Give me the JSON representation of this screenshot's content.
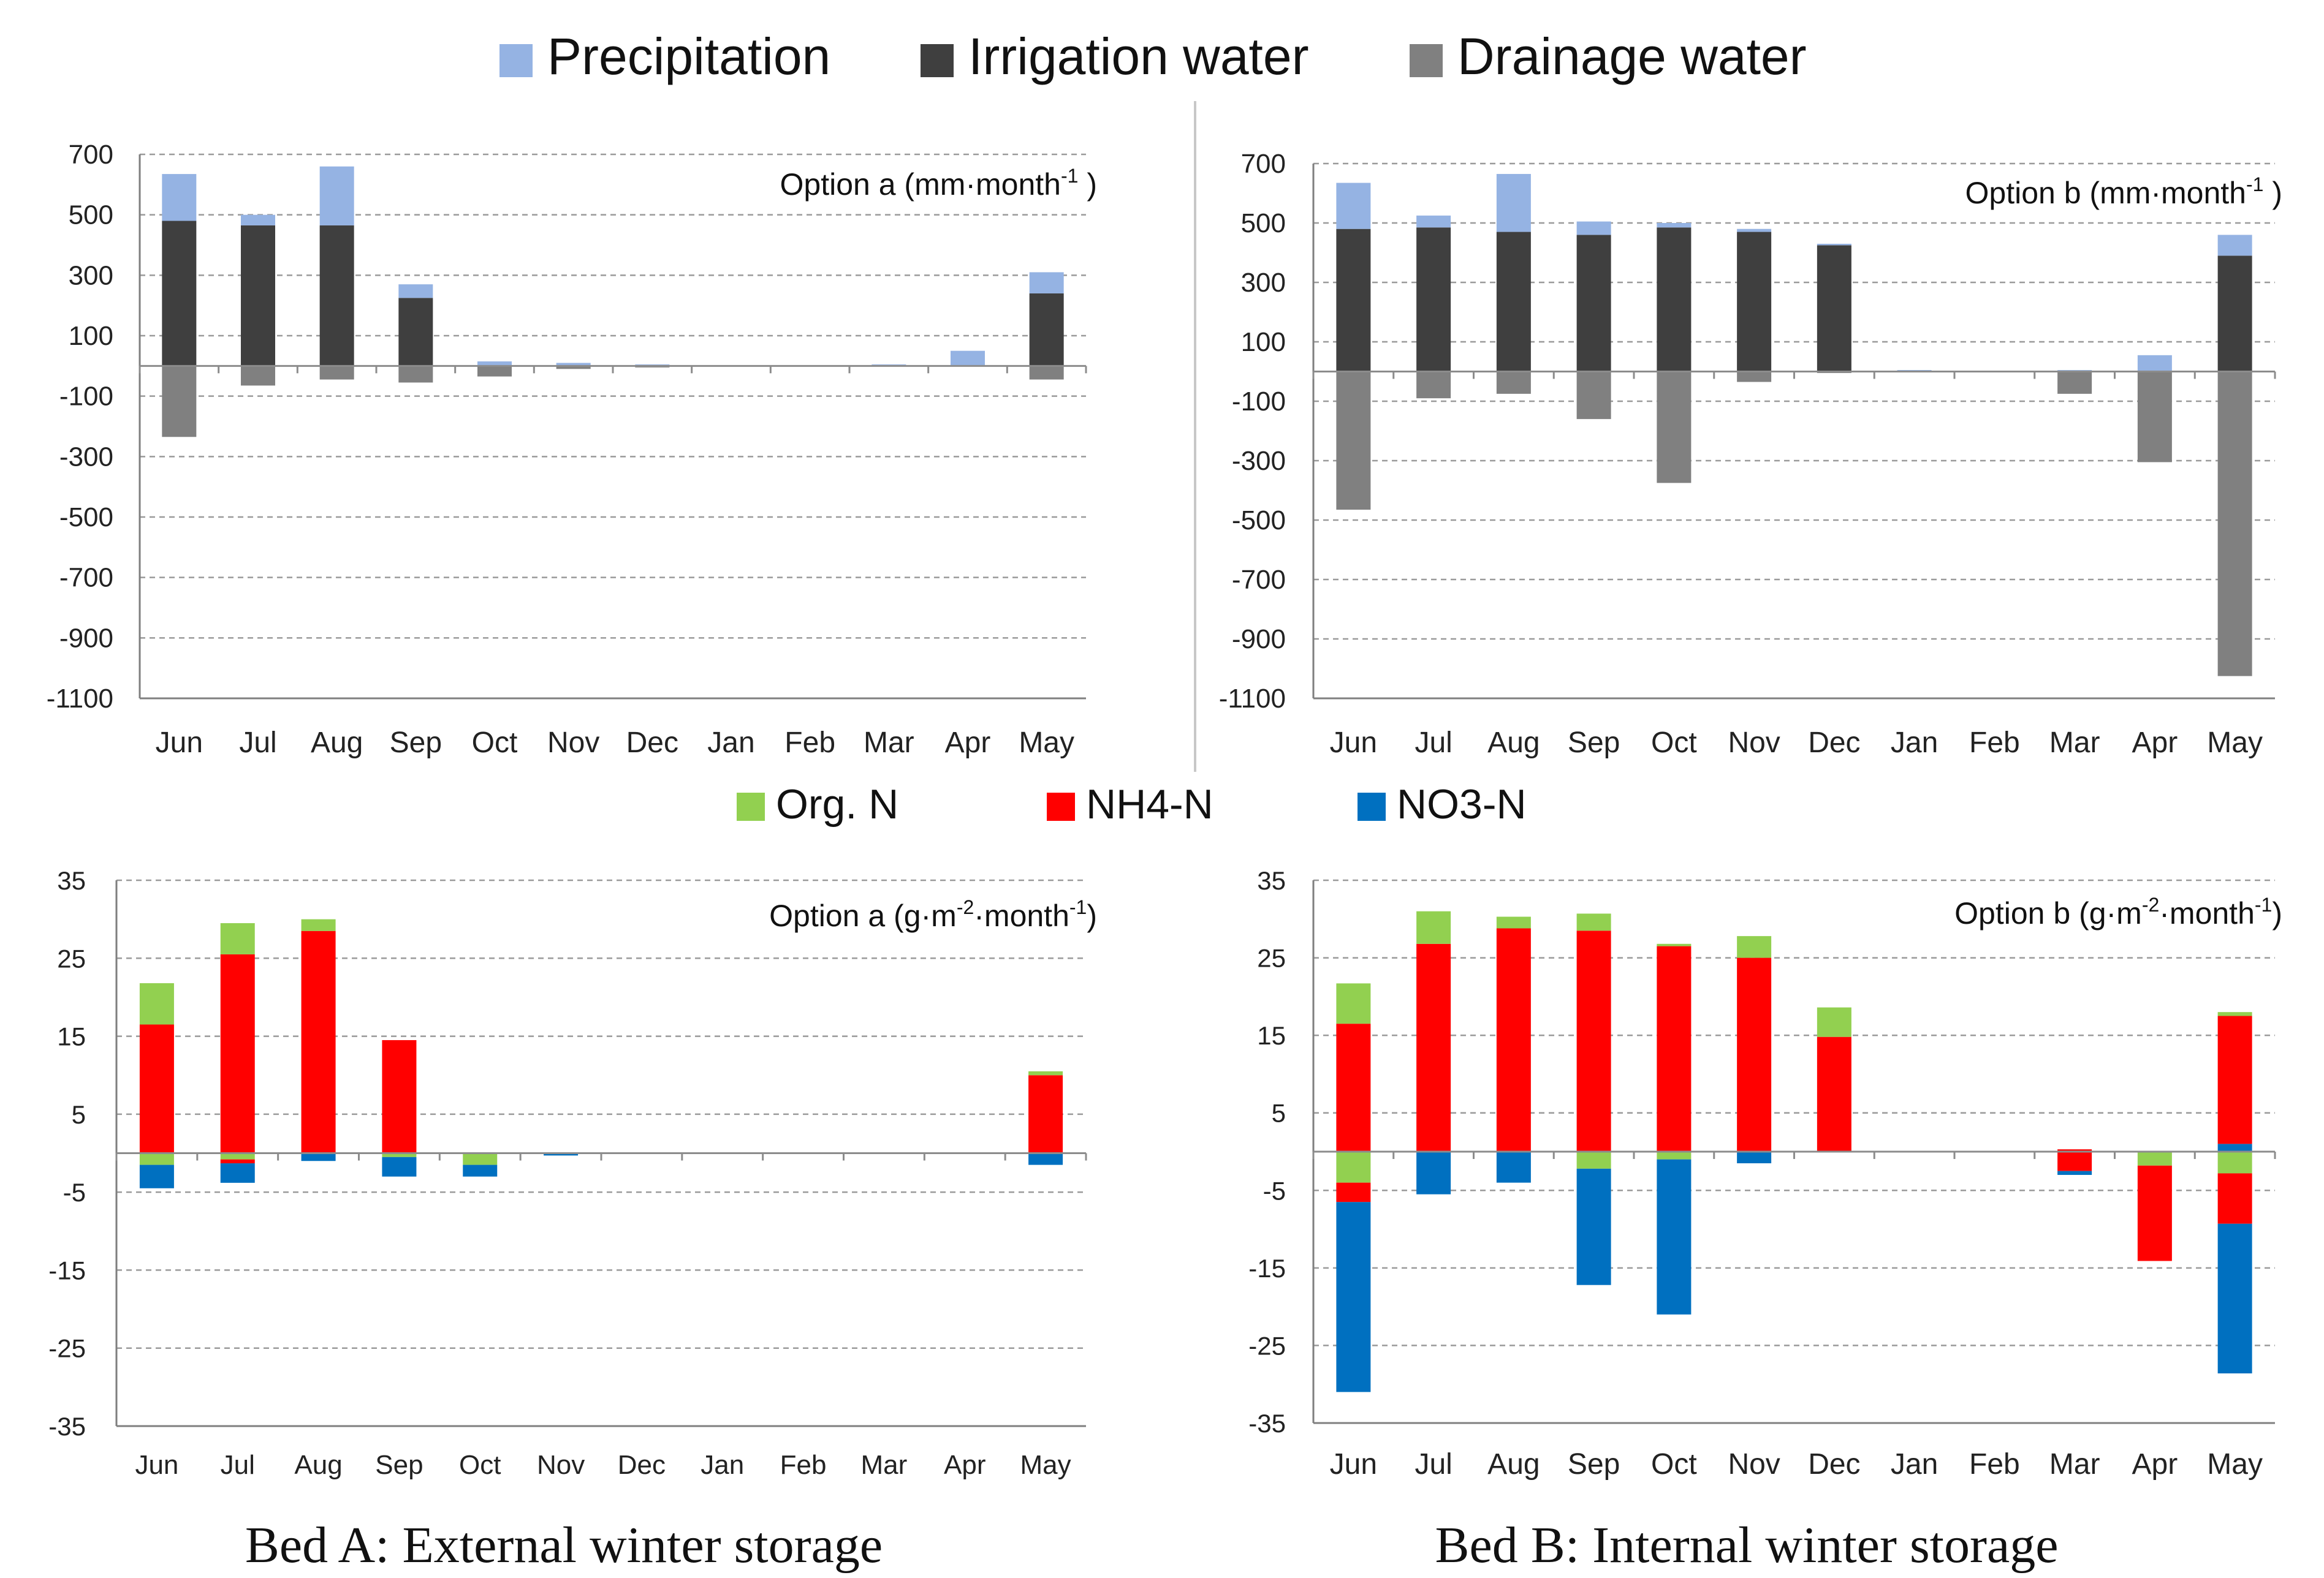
{
  "water_legend": [
    {
      "label": "Precipitation",
      "color": "#95b3e3"
    },
    {
      "label": "Irrigation water",
      "color": "#3f3f3f"
    },
    {
      "label": "Drainage water",
      "color": "#808080"
    }
  ],
  "nitrogen_legend": [
    {
      "label": "Org. N",
      "color": "#92d050"
    },
    {
      "label": "NH4-N",
      "color": "#ff0000"
    },
    {
      "label": "NO3-N",
      "color": "#0070c0"
    }
  ],
  "captions": {
    "bed_a": "Bed A: External winter storage",
    "bed_b": "Bed B: Internal winter storage"
  },
  "panel_titles": {
    "water_a": "Option a (mm·month",
    "water_b": "Option b (mm·month",
    "n_a": "Option a (g·m",
    "n_b": "Option b (g·m",
    "sup_neg1": "-1",
    "sup_neg2": "-2",
    "close": " )",
    "close_tight": ")",
    "mid": "·month"
  },
  "chart_data": [
    {
      "id": "water_a",
      "type": "bar",
      "stacked": true,
      "title": "Option a (mm·month-1 )",
      "categories": [
        "Jun",
        "Jul",
        "Aug",
        "Sep",
        "Oct",
        "Nov",
        "Dec",
        "Jan",
        "Feb",
        "Mar",
        "Apr",
        "May"
      ],
      "ylim": [
        -1100,
        700
      ],
      "yticks": [
        700,
        500,
        300,
        100,
        -100,
        -300,
        -500,
        -700,
        -900,
        -1100
      ],
      "series": [
        {
          "name": "Irrigation water",
          "color": "#3f3f3f",
          "values": [
            480,
            465,
            465,
            225,
            0,
            0,
            0,
            0,
            0,
            0,
            0,
            240
          ]
        },
        {
          "name": "Precipitation",
          "color": "#95b3e3",
          "values": [
            155,
            35,
            195,
            45,
            15,
            10,
            5,
            0,
            0,
            5,
            50,
            70
          ]
        },
        {
          "name": "Drainage water",
          "color": "#808080",
          "values": [
            -235,
            -65,
            -45,
            -55,
            -35,
            -10,
            -5,
            0,
            0,
            0,
            0,
            -45
          ]
        }
      ]
    },
    {
      "id": "water_b",
      "type": "bar",
      "stacked": true,
      "title": "Option b (mm·month-1 )",
      "categories": [
        "Jun",
        "Jul",
        "Aug",
        "Sep",
        "Oct",
        "Nov",
        "Dec",
        "Jan",
        "Feb",
        "Mar",
        "Apr",
        "May"
      ],
      "ylim": [
        -1100,
        700
      ],
      "yticks": [
        700,
        500,
        300,
        100,
        -100,
        -300,
        -500,
        -700,
        -900,
        -1100
      ],
      "series": [
        {
          "name": "Irrigation water",
          "color": "#3f3f3f",
          "values": [
            480,
            485,
            470,
            460,
            485,
            470,
            425,
            0,
            0,
            0,
            0,
            390
          ]
        },
        {
          "name": "Precipitation",
          "color": "#95b3e3",
          "values": [
            155,
            40,
            195,
            45,
            15,
            10,
            5,
            5,
            0,
            5,
            55,
            70
          ]
        },
        {
          "name": "Drainage water",
          "color": "#808080",
          "values": [
            -465,
            -90,
            -75,
            -160,
            -375,
            -35,
            -5,
            0,
            0,
            -75,
            -305,
            -1025
          ]
        }
      ]
    },
    {
      "id": "n_a",
      "type": "bar",
      "stacked": true,
      "title": "Option a (g·m-2·month-1)",
      "categories": [
        "Jun",
        "Jul",
        "Aug",
        "Sep",
        "Oct",
        "Nov",
        "Dec",
        "Jan",
        "Feb",
        "Mar",
        "Apr",
        "May"
      ],
      "ylim": [
        -35,
        35
      ],
      "yticks": [
        35,
        25,
        15,
        5,
        -5,
        -15,
        -25,
        -35
      ],
      "series": [
        {
          "name": "NH4-N (pos)",
          "color": "#ff0000",
          "values": [
            16.5,
            25.5,
            28.5,
            14.5,
            0,
            0,
            0,
            0,
            0,
            0,
            0,
            10
          ]
        },
        {
          "name": "Org. N (pos)",
          "color": "#92d050",
          "values": [
            5.3,
            4,
            1.5,
            0,
            0,
            0,
            0,
            0,
            0,
            0,
            0,
            0.5
          ]
        },
        {
          "name": "NO3-N (pos)",
          "color": "#0070c0",
          "values": [
            0,
            0,
            0,
            0,
            0,
            0,
            0,
            0,
            0,
            0,
            0,
            0
          ]
        },
        {
          "name": "Org. N (neg)",
          "color": "#92d050",
          "values": [
            -1.5,
            -0.8,
            0,
            -0.5,
            -1.5,
            0,
            0,
            0,
            0,
            0,
            0,
            0
          ]
        },
        {
          "name": "NH4-N (neg)",
          "color": "#ff0000",
          "values": [
            0,
            -0.5,
            0,
            0,
            0,
            0,
            0,
            0,
            0,
            0,
            0,
            0
          ]
        },
        {
          "name": "NO3-N (neg)",
          "color": "#0070c0",
          "values": [
            -3,
            -2.5,
            -1,
            -2.5,
            -1.5,
            -0.3,
            0,
            0,
            0,
            0,
            0,
            -1.5
          ]
        }
      ]
    },
    {
      "id": "n_b",
      "type": "bar",
      "stacked": true,
      "title": "Option b (g·m-2·month-1)",
      "categories": [
        "Jun",
        "Jul",
        "Aug",
        "Sep",
        "Oct",
        "Nov",
        "Dec",
        "Jan",
        "Feb",
        "Mar",
        "Apr",
        "May"
      ],
      "ylim": [
        -35,
        35
      ],
      "yticks": [
        35,
        25,
        15,
        5,
        -5,
        -15,
        -25,
        -35
      ],
      "series": [
        {
          "name": "NO3-N (pos)",
          "color": "#0070c0",
          "values": [
            0,
            0,
            0,
            0,
            0,
            0,
            0,
            0,
            0,
            0,
            0,
            1
          ]
        },
        {
          "name": "NH4-N (pos)",
          "color": "#ff0000",
          "values": [
            16.5,
            26.8,
            28.8,
            28.5,
            26.5,
            25,
            14.8,
            0,
            0,
            0.3,
            0,
            16.5
          ]
        },
        {
          "name": "Org. N (pos)",
          "color": "#92d050",
          "values": [
            5.2,
            4.2,
            1.5,
            2.2,
            0.3,
            2.8,
            3.8,
            0,
            0,
            0,
            0,
            0.5
          ]
        },
        {
          "name": "Org. N (neg)",
          "color": "#92d050",
          "values": [
            -4,
            0,
            0,
            -2.2,
            -1,
            0,
            0,
            0,
            0,
            0,
            -1.8,
            -2.8
          ]
        },
        {
          "name": "NH4-N (neg)",
          "color": "#ff0000",
          "values": [
            -2.5,
            0,
            0,
            0,
            0,
            0,
            0,
            0,
            0,
            -2.5,
            -12.3,
            -6.5
          ]
        },
        {
          "name": "NO3-N (neg)",
          "color": "#0070c0",
          "values": [
            -24.5,
            -5.5,
            -4,
            -15,
            -20,
            -1.5,
            0,
            0,
            0,
            -0.5,
            0,
            -19.3
          ]
        }
      ]
    }
  ]
}
